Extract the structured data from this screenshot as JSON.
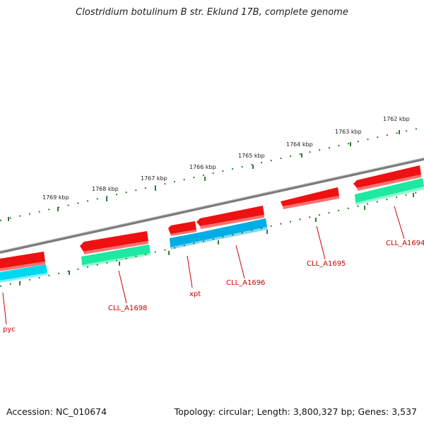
{
  "title": "Clostridium botulinum B str. Eklund 17B, complete genome",
  "footer": {
    "accession": "Accession: NC_010674",
    "topology": "Topology: circular; Length: 3,800,327 bp; Genes: 3,537"
  },
  "kbp_labels": [
    "1762 kbp",
    "1763 kbp",
    "1764 kbp",
    "1765 kbp",
    "1766 kbp",
    "1767 kbp",
    "1768 kbp",
    "1769 kbp"
  ],
  "gene_labels": [
    "CLL_A1694",
    "CLL_A1695",
    "CLL_A1696",
    "xpt",
    "CLL_A1698",
    "pyc"
  ],
  "colors": {
    "backbone": "#808080",
    "tick": "#2e7d32",
    "forward_gene": "#ee0000",
    "reverse_gene": "#00bfe6",
    "rna_gene": "#1de9a0",
    "label": "#cc0000"
  }
}
